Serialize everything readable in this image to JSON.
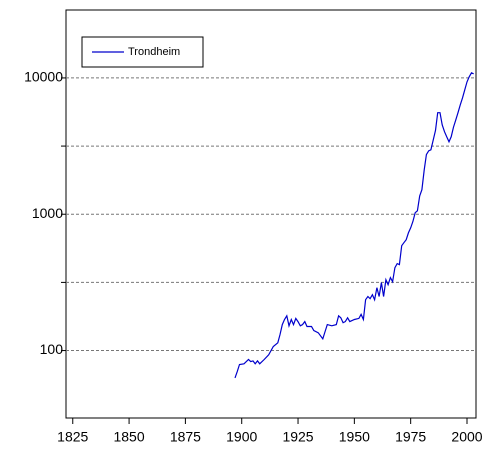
{
  "chart_data": {
    "type": "line",
    "x": [
      1897,
      1898,
      1899,
      1901,
      1903,
      1904,
      1905,
      1906,
      1907,
      1908,
      1910,
      1912,
      1914,
      1916,
      1917,
      1918,
      1919,
      1920,
      1921,
      1922,
      1923,
      1924,
      1925,
      1926,
      1927,
      1928,
      1929,
      1931,
      1932,
      1934,
      1936,
      1937,
      1938,
      1940,
      1942,
      1943,
      1944,
      1945,
      1946,
      1947,
      1948,
      1950,
      1952,
      1953,
      1954,
      1955,
      1956,
      1957,
      1958,
      1959,
      1960,
      1961,
      1962,
      1963,
      1964,
      1965,
      1966,
      1967,
      1968,
      1969,
      1970,
      1971,
      1972,
      1973,
      1974,
      1975,
      1976,
      1977,
      1978,
      1979,
      1980,
      1981,
      1982,
      1983,
      1984,
      1985,
      1986,
      1987,
      1988,
      1989,
      1990,
      1991,
      1992,
      1993,
      1994,
      1995,
      1996,
      1997,
      1998,
      1999,
      2000,
      2001,
      2002,
      2003
    ],
    "series": [
      {
        "name": "Trondheim",
        "color": "#0000cc",
        "values": [
          63,
          70,
          79,
          80,
          86,
          83,
          84,
          80,
          84,
          80,
          86,
          93,
          107,
          114,
          131,
          155,
          169,
          180,
          152,
          169,
          155,
          172,
          163,
          152,
          155,
          163,
          150,
          150,
          140,
          135,
          122,
          138,
          155,
          152,
          155,
          180,
          174,
          160,
          163,
          174,
          163,
          169,
          172,
          184,
          169,
          236,
          249,
          240,
          257,
          236,
          289,
          249,
          315,
          249,
          331,
          304,
          343,
          320,
          405,
          434,
          427,
          588,
          618,
          650,
          730,
          795,
          884,
          1026,
          1060,
          1364,
          1513,
          2110,
          2740,
          2920,
          2970,
          3500,
          4120,
          5560,
          5560,
          4530,
          4030,
          3700,
          3400,
          3700,
          4360,
          4900,
          5560,
          6320,
          7140,
          8140,
          9350,
          10200,
          10900,
          10700
        ]
      }
    ],
    "xlim": [
      1822,
      2004
    ],
    "xticks": [
      1825,
      1850,
      1875,
      1900,
      1925,
      1950,
      1975,
      2000
    ],
    "ylim": [
      32,
      31500
    ],
    "yticks": [
      100,
      1000,
      10000
    ],
    "log_y": true,
    "ygrid": [
      100,
      316.2,
      1000,
      3162.3,
      10000
    ],
    "legend": "upper left"
  }
}
